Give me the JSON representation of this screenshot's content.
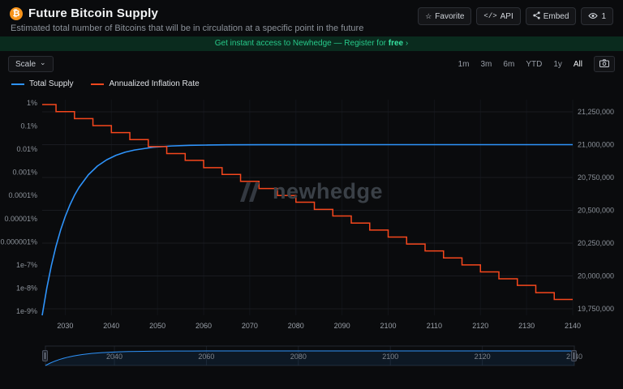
{
  "header": {
    "title": "Future Bitcoin Supply",
    "subtitle": "Estimated total number of Bitcoins that will be in circulation at a specific point in the future",
    "actions": {
      "favorite": "Favorite",
      "api": "API",
      "embed": "Embed",
      "views": "1"
    }
  },
  "icons": {
    "bitcoin": "₿",
    "favorite_star": "☆",
    "api_code": "</>",
    "scale_chevron": "⌄",
    "banner_arrow": "›"
  },
  "banner": {
    "text": "Get instant access to Newhedge — Register for ",
    "highlight": "free",
    "arrow": " ›"
  },
  "toolbar": {
    "scale_label": "Scale",
    "ranges": [
      "1m",
      "3m",
      "6m",
      "YTD",
      "1y",
      "All"
    ]
  },
  "legend": [
    {
      "label": "Total Supply",
      "color": "#2e93fa"
    },
    {
      "label": "Annualized Inflation Rate",
      "color": "#f6471d"
    }
  ],
  "watermark": {
    "text": "newhedge"
  },
  "chart_data": {
    "type": "line",
    "title": "Future Bitcoin Supply",
    "x_range": [
      2025,
      2140
    ],
    "x_ticks": [
      2030,
      2040,
      2050,
      2060,
      2070,
      2080,
      2090,
      2100,
      2110,
      2120,
      2130,
      2140
    ],
    "left_axis": {
      "scale": "log",
      "unit": "%",
      "tick_labels": [
        "1%",
        "0.1%",
        "0.01%",
        "0.001%",
        "0.0001%",
        "0.00001%",
        "0.000001%",
        "1e-7%",
        "1e-8%",
        "1e-9%"
      ],
      "tick_values": [
        1,
        0.1,
        0.01,
        0.001,
        0.0001,
        1e-05,
        1e-06,
        1e-07,
        1e-08,
        1e-09
      ]
    },
    "right_axis": {
      "scale": "linear",
      "tick_labels": [
        "21,250,000",
        "21,000,000",
        "20,750,000",
        "20,500,000",
        "20,250,000",
        "20,000,000",
        "19,750,000"
      ],
      "tick_values": [
        21250000,
        21000000,
        20750000,
        20500000,
        20250000,
        20000000,
        19750000
      ]
    },
    "series": [
      {
        "name": "Total Supply",
        "color": "#2e93fa",
        "axis": "right",
        "style": "line",
        "points": [
          [
            2025,
            19700000
          ],
          [
            2026,
            19907000
          ],
          [
            2027,
            20081000
          ],
          [
            2028,
            20227000
          ],
          [
            2029,
            20350000
          ],
          [
            2030,
            20453000
          ],
          [
            2031,
            20540000
          ],
          [
            2032,
            20614000
          ],
          [
            2033,
            20675000
          ],
          [
            2035,
            20770000
          ],
          [
            2037,
            20838000
          ],
          [
            2039,
            20885000
          ],
          [
            2041,
            20919000
          ],
          [
            2043,
            20943000
          ],
          [
            2045,
            20959000
          ],
          [
            2049,
            20980000
          ],
          [
            2053,
            20990000
          ],
          [
            2057,
            20995000
          ],
          [
            2061,
            20997000
          ],
          [
            2065,
            20999000
          ],
          [
            2073,
            20999700
          ],
          [
            2081,
            20999900
          ],
          [
            2100,
            21000000
          ],
          [
            2140,
            21000000
          ]
        ]
      },
      {
        "name": "Annualized Inflation Rate",
        "color": "#f6471d",
        "axis": "left",
        "style": "step",
        "points": [
          [
            2025,
            0.85
          ],
          [
            2028,
            0.42
          ],
          [
            2032,
            0.21
          ],
          [
            2036,
            0.105
          ],
          [
            2040,
            0.052
          ],
          [
            2044,
            0.026
          ],
          [
            2048,
            0.013
          ],
          [
            2052,
            0.0065
          ],
          [
            2056,
            0.0033
          ],
          [
            2060,
            0.0016
          ],
          [
            2064,
            0.00081
          ],
          [
            2068,
            0.00041
          ],
          [
            2072,
            0.0002
          ],
          [
            2076,
            0.0001
          ],
          [
            2080,
            5.1e-05
          ],
          [
            2084,
            2.5e-05
          ],
          [
            2088,
            1.3e-05
          ],
          [
            2092,
            6.4e-06
          ],
          [
            2096,
            3.2e-06
          ],
          [
            2100,
            1.6e-06
          ],
          [
            2104,
            8e-07
          ],
          [
            2108,
            4e-07
          ],
          [
            2112,
            2e-07
          ],
          [
            2116,
            1e-07
          ],
          [
            2120,
            5e-08
          ],
          [
            2124,
            2.5e-08
          ],
          [
            2128,
            1.3e-08
          ],
          [
            2132,
            6.3e-09
          ],
          [
            2136,
            3.2e-09
          ]
        ]
      }
    ],
    "navigator": {
      "x_labels": [
        2040,
        2060,
        2080,
        2100,
        2120,
        2140
      ]
    }
  }
}
